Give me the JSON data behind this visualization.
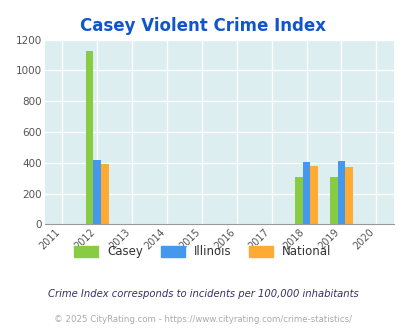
{
  "title": "Casey Violent Crime Index",
  "years": [
    2011,
    2012,
    2013,
    2014,
    2015,
    2016,
    2017,
    2018,
    2019,
    2020
  ],
  "bar_width": 0.22,
  "casey": {
    "2012": 1125,
    "2018": 305,
    "2019": 310
  },
  "illinois": {
    "2012": 420,
    "2018": 403,
    "2019": 410
  },
  "national": {
    "2012": 390,
    "2018": 380,
    "2019": 375
  },
  "casey_color": "#88cc44",
  "illinois_color": "#4499ee",
  "national_color": "#ffaa33",
  "bg_color": "#ddeef0",
  "ylim": [
    0,
    1200
  ],
  "yticks": [
    0,
    200,
    400,
    600,
    800,
    1000,
    1200
  ],
  "legend_labels": [
    "Casey",
    "Illinois",
    "National"
  ],
  "footnote1": "Crime Index corresponds to incidents per 100,000 inhabitants",
  "footnote2": "© 2025 CityRating.com - https://www.cityrating.com/crime-statistics/"
}
